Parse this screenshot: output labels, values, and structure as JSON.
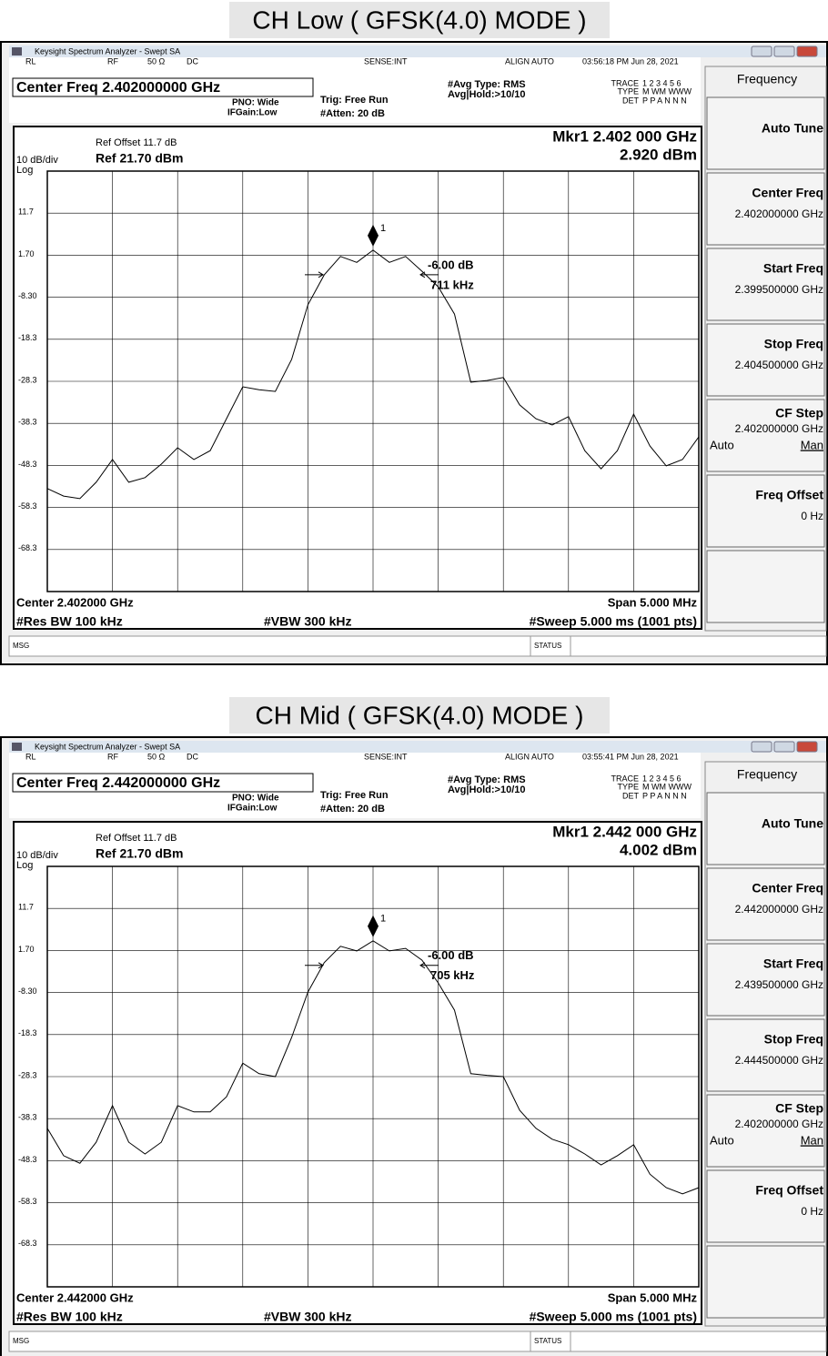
{
  "panels": [
    {
      "title": "CH Low ( GFSK(4.0) MODE )",
      "window_title": "Keysight Spectrum Analyzer - Swept SA",
      "status_row": {
        "rl": "RL",
        "rf": "RF",
        "impedance": "50 Ω",
        "coupling": "DC",
        "sense": "SENSE:INT",
        "align": "ALIGN AUTO",
        "time": "03:56:18 PM Jun 28, 2021"
      },
      "center_freq_title": "Center Freq 2.402000000 GHz",
      "pno": "PNO: Wide",
      "ifgain": "IFGain:Low",
      "trig": "Trig: Free Run",
      "atten": "#Atten: 20 dB",
      "avg_type": "#Avg Type: RMS",
      "avg_hold": "Avg|Hold:>10/10",
      "trace_label": "TRACE",
      "trace_value": "1 2 3 4 5 6",
      "type_label": "TYPE",
      "type_value": "M WM WWW",
      "det_label": "DET",
      "det_value": "P P A N N N",
      "ref_offset": "Ref Offset 11.7 dB",
      "scale": "10 dB/div",
      "ref_level": "Ref 21.70 dBm",
      "log": "Log",
      "marker_freq": "Mkr1 2.402 000 GHz",
      "marker_level": "2.920 dBm",
      "chart": {
        "type": "line",
        "ylim": [
          -78.3,
          21.7
        ],
        "yticks": [
          11.7,
          {
            "value": 1.7,
            "label": "1.70"
          },
          {
            "value": -8.3,
            "label": "-8.30"
          },
          -18.3,
          -28.3,
          -38.3,
          -48.3,
          -58.3,
          -68.3
        ],
        "trace": [
          -53.8,
          -55.6,
          -56.2,
          -52.3,
          -46.9,
          -52.3,
          -51.2,
          -48,
          -44.1,
          -46.9,
          -44.8,
          -37.2,
          -29.6,
          -30.3,
          -30.7,
          -23.1,
          -10.1,
          -3,
          1.4,
          0,
          2.9,
          0,
          1.4,
          -2.1,
          -5.8,
          -12.3,
          -28.5,
          -28.1,
          -27.4,
          -33.9,
          -37.2,
          -38.7,
          -36.7,
          -44.8,
          -49.1,
          -44.8,
          -36.1,
          -43.7,
          -48.4,
          -46.9,
          -41.5
        ],
        "color": "#000000",
        "grid": true
      },
      "marker_label": "1",
      "ndb": "-6.00 dB",
      "bandwidth": "711 kHz",
      "footer": {
        "center": "Center 2.402000 GHz",
        "span": "Span 5.000 MHz",
        "rbw": "#Res BW 100 kHz",
        "vbw": "#VBW 300 kHz",
        "sweep": "#Sweep  5.000 ms (1001 pts)"
      },
      "msg": "MSG",
      "status": "STATUS",
      "menu": {
        "title": "Frequency",
        "items": [
          {
            "label": "Auto Tune"
          },
          {
            "label": "Center Freq",
            "value": "2.402000000 GHz"
          },
          {
            "label": "Start Freq",
            "value": "2.399500000 GHz"
          },
          {
            "label": "Stop Freq",
            "value": "2.404500000 GHz"
          },
          {
            "label": "CF Step",
            "value": "2.402000000 GHz",
            "auto": "Auto",
            "man": "Man"
          },
          {
            "label": "Freq Offset",
            "value": "0 Hz"
          }
        ]
      }
    },
    {
      "title": "CH Mid ( GFSK(4.0) MODE )",
      "window_title": "Keysight Spectrum Analyzer - Swept SA",
      "status_row": {
        "rl": "RL",
        "rf": "RF",
        "impedance": "50 Ω",
        "coupling": "DC",
        "sense": "SENSE:INT",
        "align": "ALIGN AUTO",
        "time": "03:55:41 PM Jun 28, 2021"
      },
      "center_freq_title": "Center Freq 2.442000000 GHz",
      "pno": "PNO: Wide",
      "ifgain": "IFGain:Low",
      "trig": "Trig: Free Run",
      "atten": "#Atten: 20 dB",
      "avg_type": "#Avg Type: RMS",
      "avg_hold": "Avg|Hold:>10/10",
      "trace_label": "TRACE",
      "trace_value": "1 2 3 4 5 6",
      "type_label": "TYPE",
      "type_value": "M WM WWW",
      "det_label": "DET",
      "det_value": "P P A N N N",
      "ref_offset": "Ref Offset 11.7 dB",
      "scale": "10 dB/div",
      "ref_level": "Ref 21.70 dBm",
      "log": "Log",
      "marker_freq": "Mkr1 2.442 000 GHz",
      "marker_level": "4.002 dBm",
      "chart": {
        "type": "line",
        "ylim": [
          -78.3,
          21.7
        ],
        "yticks": [
          11.7,
          {
            "value": 1.7,
            "label": "1.70"
          },
          {
            "value": -8.3,
            "label": "-8.30"
          },
          -18.3,
          -28.3,
          -38.3,
          -48.3,
          -58.3,
          -68.3
        ],
        "trace": [
          -40.6,
          -47.1,
          -48.9,
          -43.9,
          -35.2,
          -43.9,
          -46.7,
          -43.9,
          -35.2,
          -36.7,
          -36.7,
          -33.1,
          -25.1,
          -27.6,
          -28.3,
          -19,
          -8.2,
          -1.2,
          2.7,
          1.6,
          4.0,
          1.6,
          2.2,
          -0.6,
          -6,
          -12.5,
          -27.6,
          -28,
          -28.3,
          -36.3,
          -40.6,
          -43.2,
          -44.5,
          -46.7,
          -49.3,
          -47.1,
          -44.5,
          -51.5,
          -54.7,
          -56.2,
          -54.7
        ],
        "color": "#000000",
        "grid": true
      },
      "marker_label": "1",
      "ndb": "-6.00 dB",
      "bandwidth": "705 kHz",
      "footer": {
        "center": "Center 2.442000 GHz",
        "span": "Span 5.000 MHz",
        "rbw": "#Res BW 100 kHz",
        "vbw": "#VBW 300 kHz",
        "sweep": "#Sweep  5.000 ms (1001 pts)"
      },
      "msg": "MSG",
      "status": "STATUS",
      "menu": {
        "title": "Frequency",
        "items": [
          {
            "label": "Auto Tune"
          },
          {
            "label": "Center Freq",
            "value": "2.442000000 GHz"
          },
          {
            "label": "Start Freq",
            "value": "2.439500000 GHz"
          },
          {
            "label": "Stop Freq",
            "value": "2.444500000 GHz"
          },
          {
            "label": "CF Step",
            "value": "2.402000000 GHz",
            "auto": "Auto",
            "man": "Man"
          },
          {
            "label": "Freq Offset",
            "value": "0 Hz"
          }
        ]
      }
    }
  ]
}
